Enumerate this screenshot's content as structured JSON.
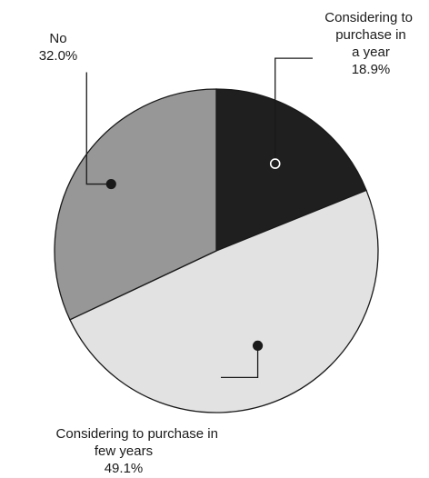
{
  "chart_data": {
    "type": "pie",
    "title": "",
    "start_angle_deg": 0,
    "direction": "clockwise",
    "slices": [
      {
        "name": "Considering to purchase in a year",
        "label_lines": [
          "Considering to",
          "purchase in",
          "a year"
        ],
        "value": 18.9,
        "value_label": "18.9%",
        "color": "#1f1f1f",
        "marker": "hollow"
      },
      {
        "name": "Considering to purchase in few years",
        "label_lines": [
          "Considering to purchase in",
          "few years"
        ],
        "value": 49.1,
        "value_label": "49.1%",
        "color": "#e2e2e2",
        "marker": "filled"
      },
      {
        "name": "No",
        "label_lines": [
          "No"
        ],
        "value": 32.0,
        "value_label": "32.0%",
        "color": "#979797",
        "marker": "filled"
      }
    ]
  }
}
